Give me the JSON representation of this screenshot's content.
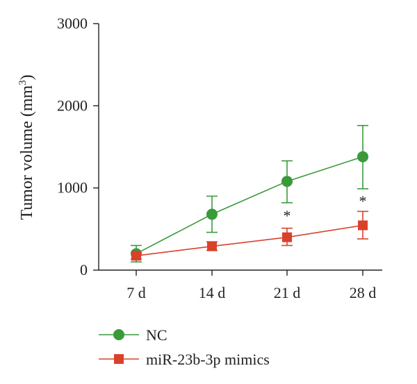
{
  "chart_data": {
    "type": "line",
    "categories": [
      "7 d",
      "14 d",
      "21 d",
      "28 d"
    ],
    "yticks": [
      0,
      1000,
      2000,
      3000
    ],
    "ylim": [
      0,
      3000
    ],
    "ylabel": "Tumor volume (mm",
    "ylabel_sup": "3",
    "ylabel_close": ")",
    "xlabel": "",
    "title": "",
    "legend_position": "bottom-left",
    "series": [
      {
        "name": "NC",
        "color": "#3a9a3a",
        "marker": "circle",
        "values": [
          200,
          680,
          1080,
          1380
        ],
        "err_low": [
          100,
          460,
          820,
          990
        ],
        "err_high": [
          300,
          900,
          1330,
          1760
        ]
      },
      {
        "name": "miR-23b-3p mimics",
        "color": "#d9412b",
        "marker": "square",
        "values": [
          175,
          290,
          400,
          545
        ],
        "err_low": [
          135,
          240,
          300,
          380
        ],
        "err_high": [
          210,
          345,
          510,
          715
        ]
      }
    ],
    "annotations": [
      {
        "category": "21 d",
        "text": "*",
        "y": 700
      },
      {
        "category": "28 d",
        "text": "*",
        "y": 880
      }
    ]
  }
}
